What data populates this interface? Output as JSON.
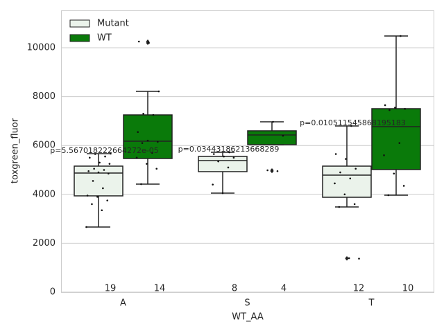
{
  "chart_data": {
    "type": "box",
    "xlabel": "WT_AA",
    "ylabel": "toxgreen_fluor",
    "categories": [
      "A",
      "S",
      "T"
    ],
    "ylim": [
      0,
      11530
    ],
    "yticks": [
      0,
      2000,
      4000,
      6000,
      8000,
      10000
    ],
    "grid": true,
    "legend": "upper left",
    "annotations": [
      "p=5.567018222664272e-05",
      "p=0.03443186213668289",
      "p=0.010511545868195183"
    ],
    "series": [
      {
        "name": "Mutant",
        "color": "#ebf3eb",
        "counts": [
          19,
          8,
          12
        ],
        "boxes": [
          {
            "whislo": 2663,
            "q1": 3938,
            "med": 4873,
            "q3": 5156,
            "whishi": 5666,
            "fliers": []
          },
          {
            "whislo": 4051,
            "q1": 4929,
            "med": 5382,
            "q3": 5552,
            "whishi": 5722,
            "fliers": []
          },
          {
            "whislo": 3484,
            "q1": 3881,
            "med": 4788,
            "q3": 5156,
            "whishi": 6799,
            "fliers": [
              1370,
              1388
            ]
          }
        ],
        "points": [
          [
            2663,
            3350,
            3600,
            3750,
            3900,
            3950,
            4250,
            4550,
            4850,
            4900,
            4950,
            5000,
            5050,
            5250,
            5300,
            5500,
            5550,
            5650,
            5666
          ],
          [
            4051,
            4400,
            5100,
            5350,
            5500,
            5550,
            5650,
            5722
          ],
          [
            1370,
            1388,
            3484,
            3600,
            4000,
            4450,
            4650,
            4900,
            5050,
            5450,
            5650,
            6799
          ]
        ]
      },
      {
        "name": "WT",
        "color": "#0a7a0a",
        "counts": [
          14,
          4,
          10
        ],
        "boxes": [
          {
            "whislo": 4419,
            "q1": 5467,
            "med": 6176,
            "q3": 7252,
            "whishi": 8215,
            "fliers": [
              10200,
              10255
            ]
          },
          {
            "whislo": 6034,
            "q1": 6034,
            "med": 6431,
            "q3": 6601,
            "whishi": 6969,
            "fliers": [
              4950,
              4986
            ]
          },
          {
            "whislo": 3966,
            "q1": 5014,
            "med": 6771,
            "q3": 7507,
            "whishi": 10482,
            "fliers": []
          }
        ],
        "points": [
          [
            4419,
            5050,
            5250,
            5500,
            5700,
            6100,
            6150,
            6200,
            6550,
            7250,
            7300,
            8215,
            10200,
            10255
          ],
          [
            4950,
            4986,
            6400,
            6969
          ],
          [
            3966,
            4350,
            4850,
            5600,
            6100,
            7450,
            7500,
            7550,
            7650,
            10482
          ]
        ]
      }
    ]
  }
}
